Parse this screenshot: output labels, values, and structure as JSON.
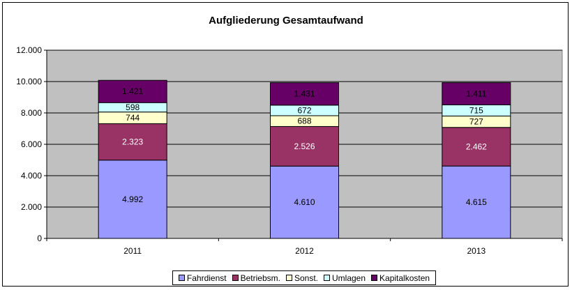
{
  "chart_data": {
    "type": "bar",
    "stacked": true,
    "title": "Aufgliederung Gesamtaufwand",
    "categories": [
      "2011",
      "2012",
      "2013"
    ],
    "ylim": [
      0,
      12000
    ],
    "yticks": [
      0,
      2000,
      4000,
      6000,
      8000,
      10000,
      12000
    ],
    "ytick_labels": [
      "0",
      "2.000",
      "4.000",
      "6.000",
      "8.000",
      "10.000",
      "12.000"
    ],
    "grid": true,
    "legend_position": "bottom",
    "series": [
      {
        "name": "Fahrdienst",
        "color": "#9999ff",
        "values": [
          4992,
          4610,
          4615
        ],
        "labels": [
          "4.992",
          "4.610",
          "4.615"
        ],
        "label_color": "#000000"
      },
      {
        "name": "Betriebsm.",
        "color": "#993366",
        "values": [
          2323,
          2526,
          2462
        ],
        "labels": [
          "2.323",
          "2.526",
          "2.462"
        ],
        "label_color": "#ffffff"
      },
      {
        "name": "Sonst.",
        "color": "#ffffcc",
        "values": [
          744,
          688,
          727
        ],
        "labels": [
          "744",
          "688",
          "727"
        ],
        "label_color": "#000000"
      },
      {
        "name": "Umlagen",
        "color": "#ccffff",
        "values": [
          598,
          672,
          715
        ],
        "labels": [
          "598",
          "672",
          "715"
        ],
        "label_color": "#000000"
      },
      {
        "name": "Kapitalkosten",
        "color": "#660066",
        "values": [
          1421,
          1431,
          1411
        ],
        "labels": [
          "1.421",
          "1.431",
          "1.411"
        ],
        "label_color": "#000000"
      }
    ]
  },
  "colors": {
    "plot_background": "#c0c0c0",
    "gridline": "#000000"
  }
}
